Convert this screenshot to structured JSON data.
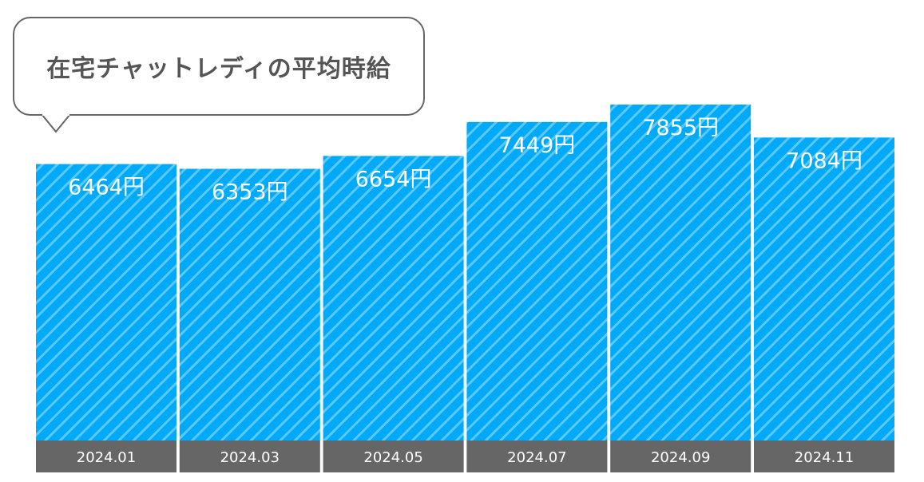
{
  "chart_data": {
    "type": "bar",
    "title": "在宅チャットレディの平均時給",
    "categories": [
      "2024.01",
      "2024.03",
      "2024.05",
      "2024.07",
      "2024.09",
      "2024.11"
    ],
    "values": [
      6464,
      6353,
      6654,
      7449,
      7855,
      7084
    ],
    "value_labels": [
      "6464円",
      "6353円",
      "6654円",
      "7449円",
      "7855円",
      "7084円"
    ],
    "unit": "円",
    "ylim": [
      0,
      10300
    ],
    "grid": false,
    "colors": {
      "bar": "#00aaf8",
      "stripe": "#5cc8fb",
      "category_band": "#666666",
      "category_text": "#ffffff",
      "title_text": "#555555"
    }
  }
}
